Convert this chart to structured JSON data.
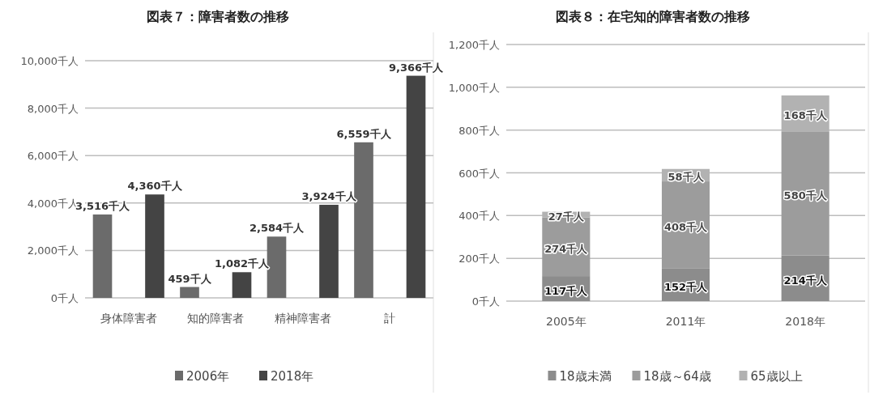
{
  "chart_data": [
    {
      "type": "bar",
      "title": "図表７：障害者数の推移",
      "categories": [
        "身体障害者",
        "知的障害者",
        "精神障害者",
        "計"
      ],
      "series": [
        {
          "name": "2006年",
          "color": "#6b6b6b",
          "values": [
            3516,
            459,
            2584,
            6559
          ],
          "value_labels": [
            "3,516千人",
            "459千人",
            "2,584千人",
            "6,559千人"
          ]
        },
        {
          "name": "2018年",
          "color": "#444444",
          "values": [
            4360,
            1082,
            3924,
            9366
          ],
          "value_labels": [
            "4,360千人",
            "1,082千人",
            "3,924千人",
            "9,366千人"
          ]
        }
      ],
      "ylim": [
        0,
        10000
      ],
      "yticks": [
        {
          "value": 0,
          "label": "0千人"
        },
        {
          "value": 2000,
          "label": "2,000千人"
        },
        {
          "value": 4000,
          "label": "4,000千人"
        },
        {
          "value": 6000,
          "label": "6,000千人"
        },
        {
          "value": 8000,
          "label": "8,000千人"
        },
        {
          "value": 10000,
          "label": "10,000千人"
        }
      ],
      "grid": "y",
      "legend": "bottom"
    },
    {
      "type": "bar",
      "title": "図表８：在宅知的障害者数の推移",
      "categories": [
        "2005年",
        "2011年",
        "2018年"
      ],
      "stacked": true,
      "series": [
        {
          "name": "18歳未満",
          "color": "#8c8c8c",
          "values": [
            117,
            152,
            214
          ],
          "value_labels": [
            "117千人",
            "152千人",
            "214千人"
          ]
        },
        {
          "name": "18歳～64歳",
          "color": "#9c9c9c",
          "values": [
            274,
            408,
            580
          ],
          "value_labels": [
            "274千人",
            "408千人",
            "580千人"
          ]
        },
        {
          "name": "65歳以上",
          "color": "#b2b2b2",
          "values": [
            27,
            58,
            168
          ],
          "value_labels": [
            "27千人",
            "58千人",
            "168千人"
          ]
        }
      ],
      "ylim": [
        0,
        1200
      ],
      "yticks": [
        {
          "value": 0,
          "label": "0千人"
        },
        {
          "value": 200,
          "label": "200千人"
        },
        {
          "value": 400,
          "label": "400千人"
        },
        {
          "value": 600,
          "label": "600千人"
        },
        {
          "value": 800,
          "label": "800千人"
        },
        {
          "value": 1000,
          "label": "1,000千人"
        },
        {
          "value": 1200,
          "label": "1,200千人"
        }
      ],
      "grid": "y",
      "legend": "bottom"
    }
  ]
}
